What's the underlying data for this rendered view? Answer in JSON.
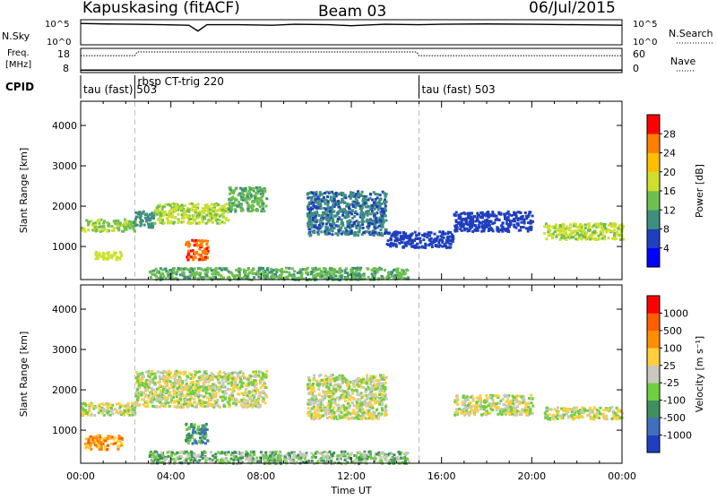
{
  "header": {
    "station": "Kapuskasing (fitACF)",
    "beam": "Beam 03",
    "date": "06/Jul/2015"
  },
  "strip_panels": {
    "nsky": {
      "label": "N.Sky",
      "left_ticks": [
        "10^5",
        "10^0"
      ],
      "right_ticks": [
        "10^5",
        "10^0"
      ],
      "right_label": "N.Search",
      "trace": [
        [
          0,
          0.85
        ],
        [
          1.2,
          0.83
        ],
        [
          2.4,
          0.82
        ],
        [
          3.6,
          0.8
        ],
        [
          4.8,
          0.78
        ],
        [
          5.2,
          0.55
        ],
        [
          5.6,
          0.8
        ],
        [
          7,
          0.8
        ],
        [
          8.5,
          0.78
        ],
        [
          9.5,
          0.82
        ],
        [
          11,
          0.8
        ],
        [
          12,
          0.76
        ],
        [
          13.5,
          0.82
        ],
        [
          15,
          0.8
        ],
        [
          16,
          0.82
        ],
        [
          18,
          0.83
        ],
        [
          20,
          0.82
        ],
        [
          22,
          0.8
        ],
        [
          24,
          0.78
        ]
      ]
    },
    "freq": {
      "label_line1": "Freq.",
      "label_line2": "[MHz]",
      "left_ticks": [
        "18",
        "8"
      ],
      "right_ticks": [
        "60",
        "0"
      ],
      "right_label": "Nave",
      "trace": [
        [
          0,
          0.3
        ],
        [
          2.4,
          0.3
        ],
        [
          2.5,
          0.15
        ],
        [
          14.9,
          0.15
        ],
        [
          15,
          0.3
        ],
        [
          24,
          0.3
        ]
      ],
      "nave": [
        [
          0,
          0.1
        ],
        [
          24,
          0.1
        ]
      ]
    },
    "cpid": {
      "label": "CPID",
      "segments": [
        {
          "start": 0,
          "end": 2.4,
          "label": "tau (fast) 503"
        },
        {
          "start": 2.4,
          "end": 15,
          "label": "rbsp CT-trig 220"
        },
        {
          "start": 15,
          "end": 24,
          "label": "tau (fast) 503"
        }
      ]
    }
  },
  "chart_data": [
    {
      "type": "heatmap",
      "parameter": "power",
      "x_range": [
        0,
        24
      ],
      "y_range": [
        180,
        4600
      ],
      "ylabel": "Slant Range [km]",
      "y_ticks": [
        1000,
        2000,
        3000,
        4000
      ],
      "colorbar": {
        "label": "Power [dB]",
        "ticks": [
          4,
          8,
          12,
          16,
          20,
          24,
          28
        ],
        "range": [
          0,
          30
        ],
        "colors": [
          "#0000ff",
          "#1f3fbf",
          "#3f8f7f",
          "#6fbf4f",
          "#cfdf2f",
          "#ffbf00",
          "#ff7f00",
          "#ff0000"
        ]
      },
      "scatter_regions": [
        {
          "t0": 0,
          "t1": 2.4,
          "r0": 1400,
          "r1": 1700,
          "level": 15
        },
        {
          "t0": 0.6,
          "t1": 1.8,
          "r0": 700,
          "r1": 900,
          "level": 17
        },
        {
          "t0": 2.3,
          "t1": 3.2,
          "r0": 1500,
          "r1": 1900,
          "level": 10
        },
        {
          "t0": 3.2,
          "t1": 6.5,
          "r0": 1600,
          "r1": 2100,
          "level": 16
        },
        {
          "t0": 4.6,
          "t1": 5.6,
          "r0": 700,
          "r1": 1200,
          "level": 27
        },
        {
          "t0": 6.5,
          "t1": 8.2,
          "r0": 1900,
          "r1": 2500,
          "level": 12
        },
        {
          "t0": 3,
          "t1": 14.5,
          "r0": 200,
          "r1": 500,
          "level": 12
        },
        {
          "t0": 10,
          "t1": 13.5,
          "r0": 1300,
          "r1": 2400,
          "level": 8
        },
        {
          "t0": 13.5,
          "t1": 16.5,
          "r0": 1000,
          "r1": 1400,
          "level": 6
        },
        {
          "t0": 16.5,
          "t1": 20,
          "r0": 1400,
          "r1": 1900,
          "level": 6
        },
        {
          "t0": 20.5,
          "t1": 24,
          "r0": 1200,
          "r1": 1600,
          "level": 16
        }
      ]
    },
    {
      "type": "heatmap",
      "parameter": "velocity",
      "x_range": [
        0,
        24
      ],
      "y_range": [
        180,
        4600
      ],
      "ylabel": "Slant Range [km]",
      "xlabel": "Time UT",
      "x_ticks": [
        "00:00",
        "04:00",
        "08:00",
        "12:00",
        "16:00",
        "20:00",
        "00:00"
      ],
      "y_ticks": [
        1000,
        2000,
        3000,
        4000
      ],
      "colorbar": {
        "label": "Velocity [m s⁻¹]",
        "ticks": [
          "1000",
          "500",
          "100",
          "25",
          "-25",
          "-100",
          "-500",
          "-1000"
        ],
        "colors": [
          "#1f3fbf",
          "#3f6fbf",
          "#3f8f5f",
          "#6fcf3f",
          "#c8c8c0",
          "#ffcf3f",
          "#ff8f00",
          "#ff5f00",
          "#ff0000"
        ]
      },
      "scatter_regions": [
        {
          "t0": 0,
          "t1": 2.4,
          "r0": 1400,
          "r1": 1700,
          "level": 4
        },
        {
          "t0": 0.1,
          "t1": 1.8,
          "r0": 550,
          "r1": 900,
          "level": 6
        },
        {
          "t0": 2.4,
          "t1": 8.2,
          "r0": 1600,
          "r1": 2500,
          "level": 4
        },
        {
          "t0": 4.6,
          "t1": 5.6,
          "r0": 700,
          "r1": 1200,
          "level": 2
        },
        {
          "t0": 3,
          "t1": 14.5,
          "r0": 200,
          "r1": 500,
          "level": 3
        },
        {
          "t0": 10,
          "t1": 13.5,
          "r0": 1300,
          "r1": 2400,
          "level": 4
        },
        {
          "t0": 16.5,
          "t1": 20,
          "r0": 1400,
          "r1": 1900,
          "level": 4
        },
        {
          "t0": 20.5,
          "t1": 24,
          "r0": 1300,
          "r1": 1600,
          "level": 4
        }
      ]
    }
  ]
}
